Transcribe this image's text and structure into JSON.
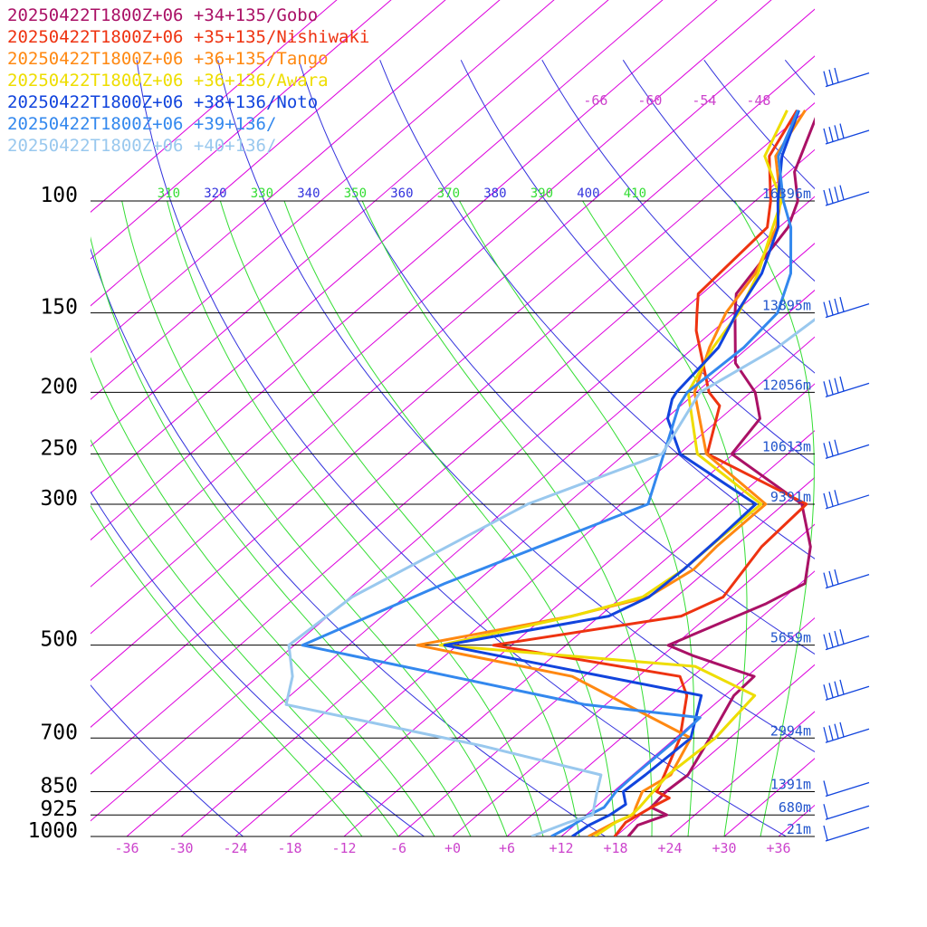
{
  "colors": {
    "isobar": "#000000",
    "isotherm": "#dd00dd",
    "dry_adiabat": "#3333dd",
    "moist_adiabat": "#33dd33",
    "height_label": "#2255cc",
    "temp_tick_label": "#cc44cc",
    "wind_barb": "#1144dd"
  },
  "chart_data": {
    "type": "line",
    "title": "",
    "xlabel": "",
    "ylabel": "",
    "y_scale": "log-pressure",
    "ylim": [
      1000,
      80
    ],
    "xlim": [
      -40,
      40
    ],
    "pressure_ticks": [
      "100",
      "150",
      "200",
      "250",
      "300",
      "500",
      "700",
      "850",
      "925",
      "1000"
    ],
    "pressure_values": [
      100,
      150,
      200,
      250,
      300,
      500,
      700,
      850,
      925,
      1000
    ],
    "height_labels": [
      "16396m",
      "13895m",
      "12056m",
      "10613m",
      "9391m",
      "5659m",
      "2994m",
      "1391m",
      "680m",
      "21m"
    ],
    "temp_ticks": [
      "-36",
      "-30",
      "-24",
      "-18",
      "-12",
      "-6",
      "+0",
      "+6",
      "+12",
      "+18",
      "+24",
      "+30",
      "+36"
    ],
    "temp_tick_values": [
      -36,
      -30,
      -24,
      -18,
      -12,
      -6,
      0,
      6,
      12,
      18,
      24,
      30,
      36
    ],
    "isotherm_labels": [
      "-66",
      "-60",
      "-54",
      "-48"
    ],
    "isotherm_label_values": [
      -66,
      -60,
      -54,
      -48
    ],
    "theta_labels": [
      "310",
      "320",
      "330",
      "340",
      "350",
      "360",
      "370",
      "380",
      "390",
      "400",
      "410"
    ],
    "theta_values": [
      310,
      320,
      330,
      340,
      350,
      360,
      370,
      380,
      390,
      400,
      410
    ],
    "series": [
      {
        "name": "20250422T1800Z+06 +34+135/Gobo",
        "color": "#aa1166",
        "points": [
          [
            1000,
            19.4
          ],
          [
            960,
            19.0
          ],
          [
            925,
            20.9
          ],
          [
            900,
            18.2
          ],
          [
            850,
            17.8
          ],
          [
            800,
            18.1
          ],
          [
            700,
            15.8
          ],
          [
            600,
            13.0
          ],
          [
            560,
            12.8
          ],
          [
            520,
            3.5
          ],
          [
            500,
            -0.7
          ],
          [
            430,
            4.8
          ],
          [
            400,
            6.5
          ],
          [
            350,
            2.4
          ],
          [
            300,
            -4.0
          ],
          [
            250,
            -18.2
          ],
          [
            220,
            -19.6
          ],
          [
            200,
            -23.5
          ],
          [
            180,
            -29.4
          ],
          [
            150,
            -35.9
          ],
          [
            140,
            -38.2
          ],
          [
            110,
            -41.0
          ],
          [
            100,
            -43.3
          ],
          [
            90,
            -47.4
          ],
          [
            72,
            -52.6
          ]
        ]
      },
      {
        "name": "20250422T1800Z+06 +35+135/Nishiwaki",
        "color": "#ee3311",
        "points": [
          [
            1000,
            17.9
          ],
          [
            950,
            17.3
          ],
          [
            900,
            18.2
          ],
          [
            870,
            19.0
          ],
          [
            850,
            16.8
          ],
          [
            800,
            15.5
          ],
          [
            700,
            12.5
          ],
          [
            600,
            7.8
          ],
          [
            560,
            4.6
          ],
          [
            500,
            -20.0
          ],
          [
            450,
            -3.0
          ],
          [
            420,
            -0.8
          ],
          [
            350,
            -3.0
          ],
          [
            300,
            -3.5
          ],
          [
            250,
            -20.9
          ],
          [
            210,
            -25.7
          ],
          [
            200,
            -28.6
          ],
          [
            160,
            -37.9
          ],
          [
            150,
            -40.1
          ],
          [
            140,
            -42.4
          ],
          [
            110,
            -43.3
          ],
          [
            100,
            -46.3
          ],
          [
            85,
            -52.2
          ],
          [
            72,
            -55.0
          ]
        ]
      },
      {
        "name": "20250422T1800Z+06 +36+135/Tango",
        "color": "#ff8811",
        "points": [
          [
            1000,
            15.0
          ],
          [
            950,
            16.1
          ],
          [
            925,
            17.2
          ],
          [
            900,
            16.5
          ],
          [
            850,
            15.2
          ],
          [
            800,
            16.2
          ],
          [
            700,
            13.7
          ],
          [
            560,
            -7.3
          ],
          [
            500,
            -28.4
          ],
          [
            450,
            -15.1
          ],
          [
            420,
            -9.1
          ],
          [
            380,
            -7.6
          ],
          [
            350,
            -8.0
          ],
          [
            300,
            -8.0
          ],
          [
            250,
            -21.0
          ],
          [
            200,
            -30.2
          ],
          [
            170,
            -34.3
          ],
          [
            150,
            -36.9
          ],
          [
            130,
            -38.7
          ],
          [
            110,
            -42.3
          ],
          [
            100,
            -45.2
          ],
          [
            85,
            -51.5
          ],
          [
            72,
            -54.1
          ]
        ]
      },
      {
        "name": "20250422T1800Z+06 +36+136/Awara",
        "color": "#eedd00",
        "points": [
          [
            1000,
            15.7
          ],
          [
            950,
            16.2
          ],
          [
            925,
            17.0
          ],
          [
            900,
            16.9
          ],
          [
            850,
            16.4
          ],
          [
            800,
            15.9
          ],
          [
            700,
            16.4
          ],
          [
            600,
            15.3
          ],
          [
            540,
            5.0
          ],
          [
            500,
            -25.9
          ],
          [
            450,
            -15.0
          ],
          [
            420,
            -9.7
          ],
          [
            380,
            -8.7
          ],
          [
            340,
            -8.7
          ],
          [
            300,
            -8.5
          ],
          [
            250,
            -22.0
          ],
          [
            200,
            -30.9
          ],
          [
            170,
            -33.9
          ],
          [
            150,
            -35.5
          ],
          [
            130,
            -38.4
          ],
          [
            110,
            -42.7
          ],
          [
            100,
            -45.1
          ],
          [
            85,
            -52.7
          ],
          [
            72,
            -56.1
          ]
        ]
      },
      {
        "name": "20250422T1800Z+06 +38+136/Noto",
        "color": "#1144dd",
        "points": [
          [
            1000,
            13.2
          ],
          [
            960,
            13.6
          ],
          [
            925,
            14.6
          ],
          [
            890,
            15.0
          ],
          [
            850,
            13.1
          ],
          [
            800,
            13.4
          ],
          [
            700,
            13.7
          ],
          [
            600,
            9.4
          ],
          [
            500,
            -25.4
          ],
          [
            450,
            -11.0
          ],
          [
            420,
            -9.0
          ],
          [
            380,
            -8.7
          ],
          [
            340,
            -8.8
          ],
          [
            300,
            -9.1
          ],
          [
            250,
            -23.9
          ],
          [
            220,
            -29.8
          ],
          [
            205,
            -31.8
          ],
          [
            200,
            -32.2
          ],
          [
            170,
            -33.3
          ],
          [
            150,
            -35.7
          ],
          [
            130,
            -38.0
          ],
          [
            110,
            -42.1
          ],
          [
            100,
            -45.5
          ],
          [
            85,
            -50.8
          ],
          [
            72,
            -54.8
          ]
        ]
      },
      {
        "name": "20250422T1800Z+06 +39+136/",
        "color": "#3388ee",
        "points": [
          [
            1000,
            10.9
          ],
          [
            960,
            11.8
          ],
          [
            925,
            12.3
          ],
          [
            900,
            13.0
          ],
          [
            850,
            12.3
          ],
          [
            800,
            12.2
          ],
          [
            700,
            12.3
          ],
          [
            650,
            12.1
          ],
          [
            620,
            -2.3
          ],
          [
            500,
            -41.1
          ],
          [
            400,
            -33.3
          ],
          [
            300,
            -21.0
          ],
          [
            250,
            -25.7
          ],
          [
            210,
            -30.2
          ],
          [
            200,
            -31.0
          ],
          [
            170,
            -30.5
          ],
          [
            150,
            -31.2
          ],
          [
            130,
            -34.8
          ],
          [
            110,
            -40.7
          ],
          [
            100,
            -44.9
          ],
          [
            85,
            -51.2
          ],
          [
            72,
            -54.9
          ]
        ]
      },
      {
        "name": "20250422T1800Z+06 +40+136/",
        "color": "#99c8ee",
        "points": [
          [
            1000,
            8.7
          ],
          [
            950,
            11.0
          ],
          [
            925,
            12.7
          ],
          [
            850,
            10.2
          ],
          [
            800,
            8.5
          ],
          [
            720,
            -8.4
          ],
          [
            620,
            -35.3
          ],
          [
            560,
            -38.2
          ],
          [
            500,
            -42.6
          ],
          [
            420,
            -41.8
          ],
          [
            300,
            -34.3
          ],
          [
            250,
            -25.9
          ],
          [
            200,
            -29.6
          ],
          [
            170,
            -26.8
          ],
          [
            150,
            -26.1
          ],
          [
            130,
            -28.6
          ],
          [
            110,
            -34.6
          ],
          [
            100,
            -38.9
          ],
          [
            85,
            -46.6
          ],
          [
            72,
            -50.2
          ]
        ]
      }
    ],
    "wind_barbs": [
      {
        "pressure": 1000,
        "barb": "calm-ish"
      },
      {
        "pressure": 925,
        "barb": "light"
      },
      {
        "pressure": 850,
        "barb": "light"
      },
      {
        "pressure": 700,
        "barb": "strong"
      },
      {
        "pressure": 600,
        "barb": "strong"
      },
      {
        "pressure": 500,
        "barb": "strong"
      },
      {
        "pressure": 400,
        "barb": "moderate"
      },
      {
        "pressure": 300,
        "barb": "moderate"
      },
      {
        "pressure": 250,
        "barb": "moderate"
      },
      {
        "pressure": 200,
        "barb": "strong"
      },
      {
        "pressure": 150,
        "barb": "strong"
      },
      {
        "pressure": 100,
        "barb": "strong"
      },
      {
        "pressure": 80,
        "barb": "strong"
      },
      {
        "pressure": 65,
        "barb": "moderate"
      }
    ]
  }
}
